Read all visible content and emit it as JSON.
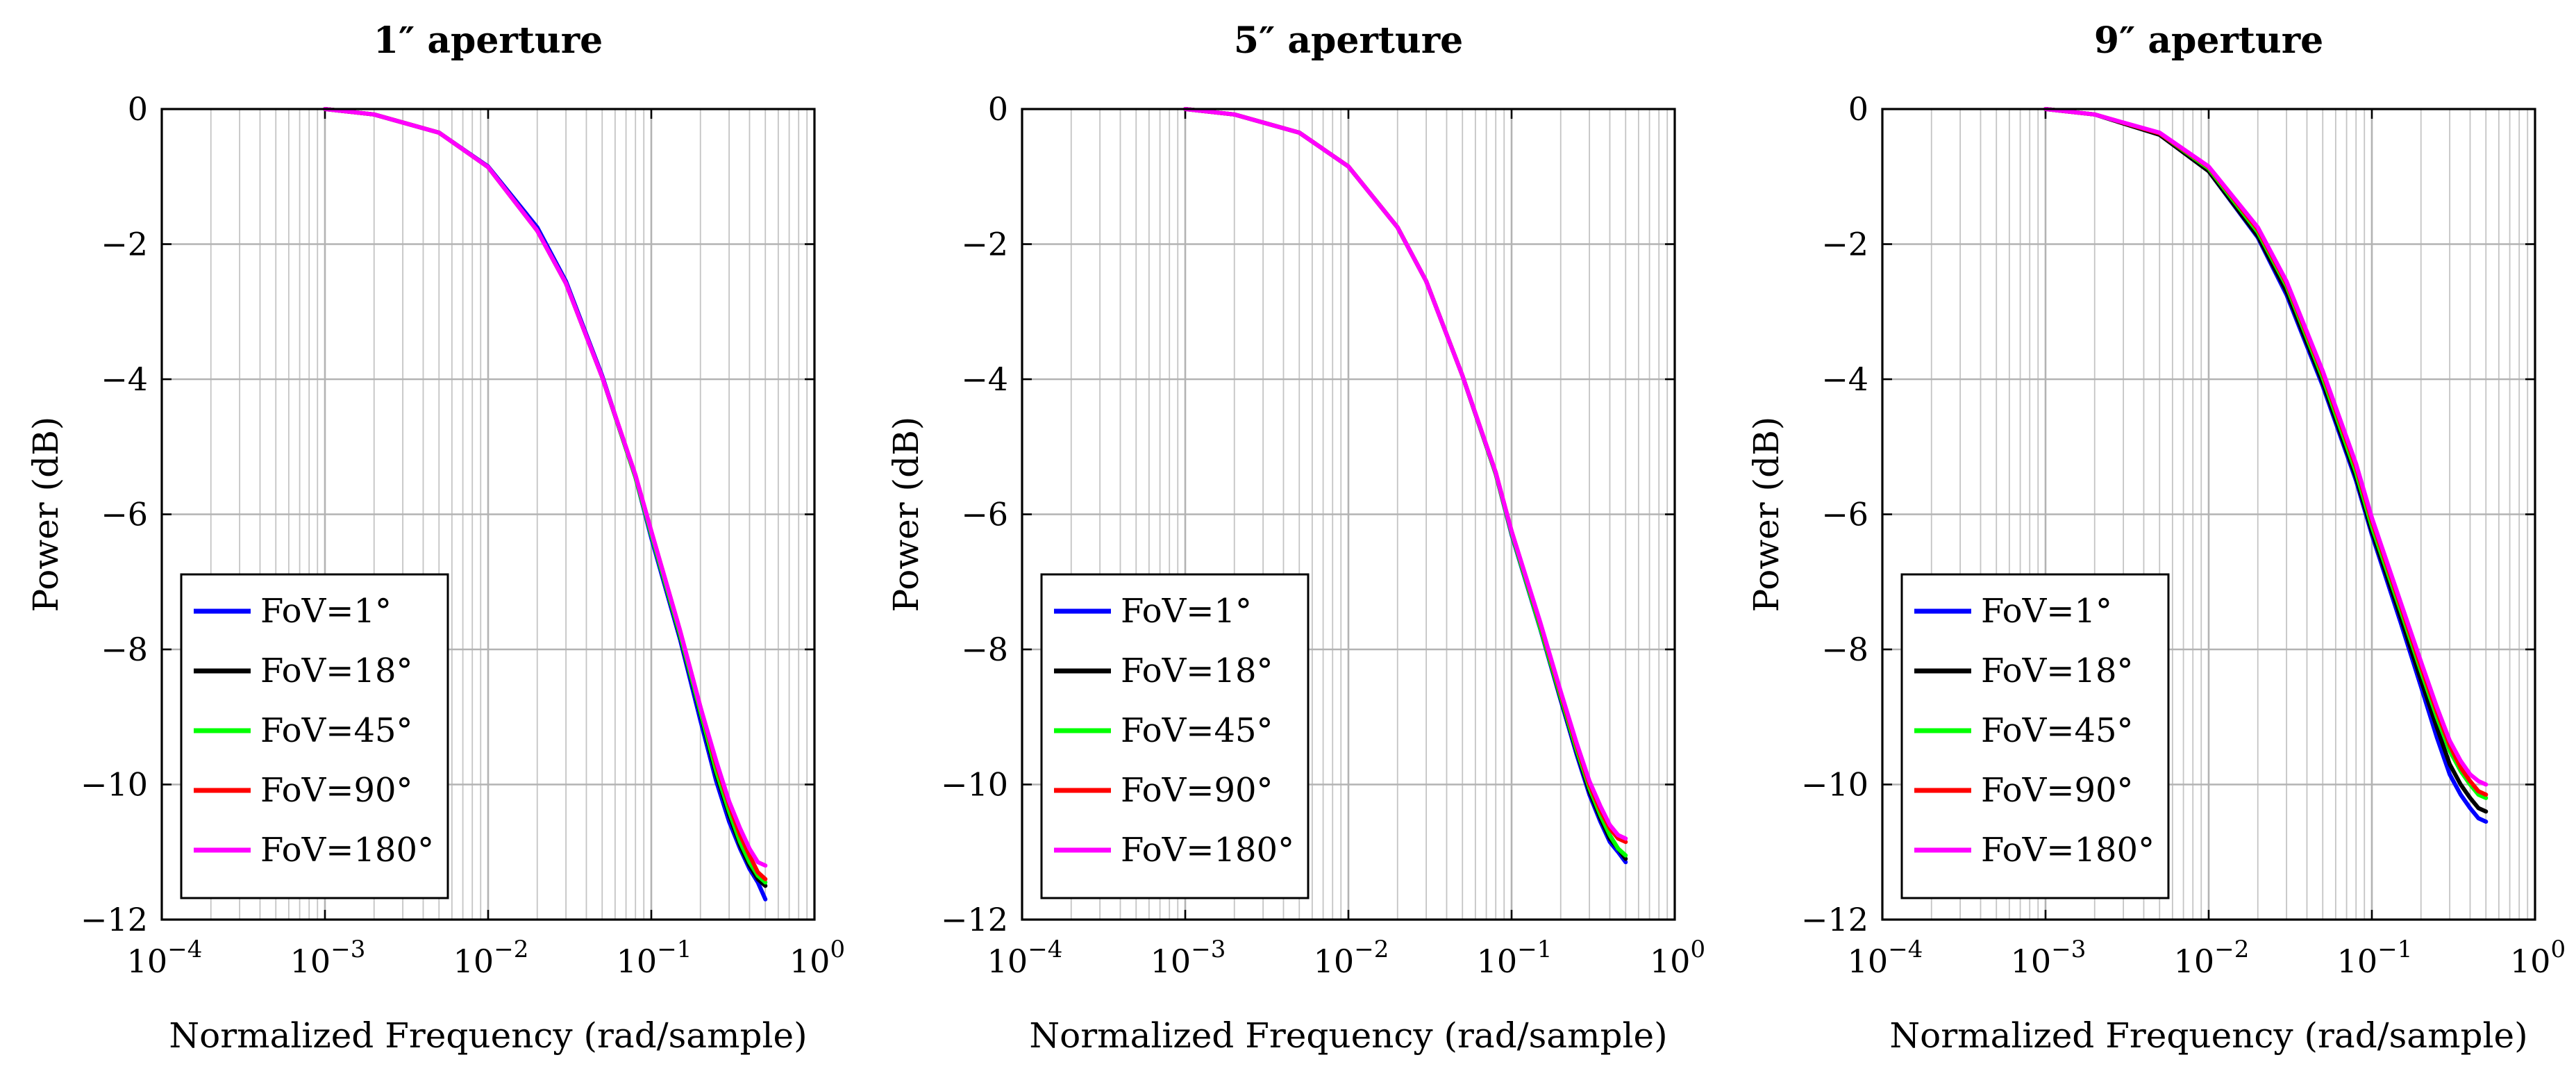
{
  "chart_data": [
    {
      "type": "line",
      "title": "1″ aperture",
      "xlabel": "Normalized Frequency (rad/sample)",
      "ylabel": "Power (dB)",
      "xscale": "log",
      "xlim": [
        0.0001,
        1
      ],
      "ylim": [
        -12,
        0
      ],
      "xticks": [
        {
          "base": "10",
          "exp": "−4"
        },
        {
          "base": "10",
          "exp": "−3"
        },
        {
          "base": "10",
          "exp": "−2"
        },
        {
          "base": "10",
          "exp": "−1"
        },
        {
          "base": "10",
          "exp": "0"
        }
      ],
      "yticks": [
        "0",
        "−2",
        "−4",
        "−6",
        "−8",
        "−10",
        "−12"
      ],
      "grid": true,
      "legend_position": "bottom-left",
      "series": [
        {
          "name": "FoV=1°",
          "color": "#0000ff",
          "x": [
            0.001,
            0.002,
            0.005,
            0.01,
            0.02,
            0.03,
            0.05,
            0.08,
            0.1,
            0.15,
            0.2,
            0.25,
            0.3,
            0.35,
            0.4,
            0.45,
            0.5
          ],
          "y": [
            0,
            -0.08,
            -0.35,
            -0.85,
            -1.75,
            -2.55,
            -3.95,
            -5.45,
            -6.35,
            -7.85,
            -9.05,
            -9.95,
            -10.55,
            -10.95,
            -11.25,
            -11.45,
            -11.7
          ]
        },
        {
          "name": "FoV=18°",
          "color": "#000000",
          "x": [
            0.001,
            0.002,
            0.005,
            0.01,
            0.02,
            0.03,
            0.05,
            0.08,
            0.1,
            0.15,
            0.2,
            0.25,
            0.3,
            0.35,
            0.4,
            0.45,
            0.5
          ],
          "y": [
            0,
            -0.08,
            -0.35,
            -0.86,
            -1.8,
            -2.58,
            -3.97,
            -5.45,
            -6.3,
            -7.8,
            -8.95,
            -9.85,
            -10.45,
            -10.9,
            -11.2,
            -11.4,
            -11.5
          ]
        },
        {
          "name": "FoV=45°",
          "color": "#00ff00",
          "x": [
            0.001,
            0.002,
            0.005,
            0.01,
            0.02,
            0.03,
            0.05,
            0.08,
            0.1,
            0.15,
            0.2,
            0.25,
            0.3,
            0.35,
            0.4,
            0.45,
            0.5
          ],
          "y": [
            0,
            -0.08,
            -0.35,
            -0.86,
            -1.8,
            -2.58,
            -3.97,
            -5.45,
            -6.3,
            -7.78,
            -8.92,
            -9.8,
            -10.4,
            -10.85,
            -11.15,
            -11.35,
            -11.45
          ]
        },
        {
          "name": "FoV=90°",
          "color": "#ff0000",
          "x": [
            0.001,
            0.002,
            0.005,
            0.01,
            0.02,
            0.03,
            0.05,
            0.08,
            0.1,
            0.15,
            0.2,
            0.25,
            0.3,
            0.35,
            0.4,
            0.45,
            0.5
          ],
          "y": [
            0,
            -0.08,
            -0.35,
            -0.86,
            -1.8,
            -2.58,
            -3.97,
            -5.42,
            -6.25,
            -7.72,
            -8.85,
            -9.7,
            -10.3,
            -10.75,
            -11.05,
            -11.3,
            -11.4
          ]
        },
        {
          "name": "FoV=180°",
          "color": "#ff00ff",
          "x": [
            0.001,
            0.002,
            0.005,
            0.01,
            0.02,
            0.03,
            0.05,
            0.08,
            0.1,
            0.15,
            0.2,
            0.25,
            0.3,
            0.35,
            0.4,
            0.45,
            0.5
          ],
          "y": [
            0,
            -0.08,
            -0.35,
            -0.86,
            -1.8,
            -2.58,
            -3.97,
            -5.42,
            -6.25,
            -7.72,
            -8.85,
            -9.65,
            -10.25,
            -10.65,
            -10.95,
            -11.15,
            -11.2
          ]
        }
      ]
    },
    {
      "type": "line",
      "title": "5″ aperture",
      "xlabel": "Normalized Frequency (rad/sample)",
      "ylabel": "Power (dB)",
      "xscale": "log",
      "xlim": [
        0.0001,
        1
      ],
      "ylim": [
        -12,
        0
      ],
      "xticks": [
        {
          "base": "10",
          "exp": "−4"
        },
        {
          "base": "10",
          "exp": "−3"
        },
        {
          "base": "10",
          "exp": "−2"
        },
        {
          "base": "10",
          "exp": "−1"
        },
        {
          "base": "10",
          "exp": "0"
        }
      ],
      "yticks": [
        "0",
        "−2",
        "−4",
        "−6",
        "−8",
        "−10",
        "−12"
      ],
      "grid": true,
      "legend_position": "bottom-left",
      "series": [
        {
          "name": "FoV=1°",
          "color": "#0000ff",
          "x": [
            0.001,
            0.002,
            0.005,
            0.01,
            0.02,
            0.03,
            0.05,
            0.08,
            0.1,
            0.15,
            0.2,
            0.25,
            0.3,
            0.35,
            0.4,
            0.45,
            0.5
          ],
          "y": [
            0,
            -0.08,
            -0.35,
            -0.85,
            -1.75,
            -2.55,
            -3.95,
            -5.4,
            -6.3,
            -7.7,
            -8.75,
            -9.55,
            -10.15,
            -10.55,
            -10.85,
            -11.0,
            -11.15
          ]
        },
        {
          "name": "FoV=18°",
          "color": "#000000",
          "x": [
            0.001,
            0.002,
            0.005,
            0.01,
            0.02,
            0.03,
            0.05,
            0.08,
            0.1,
            0.15,
            0.2,
            0.25,
            0.3,
            0.35,
            0.4,
            0.45,
            0.5
          ],
          "y": [
            0,
            -0.08,
            -0.35,
            -0.85,
            -1.75,
            -2.55,
            -3.95,
            -5.4,
            -6.28,
            -7.68,
            -8.72,
            -9.5,
            -10.1,
            -10.5,
            -10.8,
            -10.95,
            -11.1
          ]
        },
        {
          "name": "FoV=45°",
          "color": "#00ff00",
          "x": [
            0.001,
            0.002,
            0.005,
            0.01,
            0.02,
            0.03,
            0.05,
            0.08,
            0.1,
            0.15,
            0.2,
            0.25,
            0.3,
            0.35,
            0.4,
            0.45,
            0.5
          ],
          "y": [
            0,
            -0.08,
            -0.35,
            -0.85,
            -1.75,
            -2.55,
            -3.95,
            -5.4,
            -6.28,
            -7.68,
            -8.7,
            -9.48,
            -10.05,
            -10.45,
            -10.75,
            -10.95,
            -11.05
          ]
        },
        {
          "name": "FoV=90°",
          "color": "#ff0000",
          "x": [
            0.001,
            0.002,
            0.005,
            0.01,
            0.02,
            0.03,
            0.05,
            0.08,
            0.1,
            0.15,
            0.2,
            0.25,
            0.3,
            0.35,
            0.4,
            0.45,
            0.5
          ],
          "y": [
            0,
            -0.08,
            -0.35,
            -0.85,
            -1.75,
            -2.55,
            -3.95,
            -5.38,
            -6.25,
            -7.62,
            -8.65,
            -9.42,
            -10.0,
            -10.38,
            -10.65,
            -10.8,
            -10.85
          ]
        },
        {
          "name": "FoV=180°",
          "color": "#ff00ff",
          "x": [
            0.001,
            0.002,
            0.005,
            0.01,
            0.02,
            0.03,
            0.05,
            0.08,
            0.1,
            0.15,
            0.2,
            0.25,
            0.3,
            0.35,
            0.4,
            0.45,
            0.5
          ],
          "y": [
            0,
            -0.08,
            -0.35,
            -0.85,
            -1.75,
            -2.55,
            -3.95,
            -5.38,
            -6.25,
            -7.6,
            -8.62,
            -9.38,
            -9.95,
            -10.32,
            -10.6,
            -10.75,
            -10.8
          ]
        }
      ]
    },
    {
      "type": "line",
      "title": "9″ aperture",
      "xlabel": "Normalized Frequency (rad/sample)",
      "ylabel": "Power (dB)",
      "xscale": "log",
      "xlim": [
        0.0001,
        1
      ],
      "ylim": [
        -12,
        0
      ],
      "xticks": [
        {
          "base": "10",
          "exp": "−4"
        },
        {
          "base": "10",
          "exp": "−3"
        },
        {
          "base": "10",
          "exp": "−2"
        },
        {
          "base": "10",
          "exp": "−1"
        },
        {
          "base": "10",
          "exp": "0"
        }
      ],
      "yticks": [
        "0",
        "−2",
        "−4",
        "−6",
        "−8",
        "−10",
        "−12"
      ],
      "grid": true,
      "legend_position": "bottom-left",
      "series": [
        {
          "name": "FoV=1°",
          "color": "#0000ff",
          "x": [
            0.001,
            0.002,
            0.005,
            0.01,
            0.02,
            0.03,
            0.05,
            0.08,
            0.1,
            0.15,
            0.2,
            0.25,
            0.3,
            0.35,
            0.4,
            0.45,
            0.5
          ],
          "y": [
            0,
            -0.08,
            -0.38,
            -0.92,
            -1.9,
            -2.75,
            -4.1,
            -5.5,
            -6.3,
            -7.6,
            -8.55,
            -9.3,
            -9.85,
            -10.15,
            -10.35,
            -10.5,
            -10.55
          ]
        },
        {
          "name": "FoV=18°",
          "color": "#000000",
          "x": [
            0.001,
            0.002,
            0.005,
            0.01,
            0.02,
            0.03,
            0.05,
            0.08,
            0.1,
            0.15,
            0.2,
            0.25,
            0.3,
            0.35,
            0.4,
            0.45,
            0.5
          ],
          "y": [
            0,
            -0.08,
            -0.38,
            -0.92,
            -1.88,
            -2.7,
            -4.05,
            -5.45,
            -6.25,
            -7.52,
            -8.45,
            -9.15,
            -9.7,
            -10.0,
            -10.2,
            -10.35,
            -10.4
          ]
        },
        {
          "name": "FoV=45°",
          "color": "#00ff00",
          "x": [
            0.001,
            0.002,
            0.005,
            0.01,
            0.02,
            0.03,
            0.05,
            0.08,
            0.1,
            0.15,
            0.2,
            0.25,
            0.3,
            0.35,
            0.4,
            0.45,
            0.5
          ],
          "y": [
            0,
            -0.08,
            -0.36,
            -0.88,
            -1.82,
            -2.62,
            -3.98,
            -5.38,
            -6.18,
            -7.42,
            -8.32,
            -9.0,
            -9.5,
            -9.8,
            -10.0,
            -10.15,
            -10.2
          ]
        },
        {
          "name": "FoV=90°",
          "color": "#ff0000",
          "x": [
            0.001,
            0.002,
            0.005,
            0.01,
            0.02,
            0.03,
            0.05,
            0.08,
            0.1,
            0.15,
            0.2,
            0.25,
            0.3,
            0.35,
            0.4,
            0.45,
            0.5
          ],
          "y": [
            0,
            -0.08,
            -0.36,
            -0.86,
            -1.78,
            -2.58,
            -3.92,
            -5.3,
            -6.1,
            -7.35,
            -8.25,
            -8.92,
            -9.42,
            -9.75,
            -9.95,
            -10.1,
            -10.15
          ]
        },
        {
          "name": "FoV=180°",
          "color": "#ff00ff",
          "x": [
            0.001,
            0.002,
            0.005,
            0.01,
            0.02,
            0.03,
            0.05,
            0.08,
            0.1,
            0.15,
            0.2,
            0.25,
            0.3,
            0.35,
            0.4,
            0.45,
            0.5
          ],
          "y": [
            0,
            -0.08,
            -0.35,
            -0.85,
            -1.75,
            -2.55,
            -3.88,
            -5.25,
            -6.05,
            -7.3,
            -8.18,
            -8.85,
            -9.35,
            -9.65,
            -9.85,
            -9.95,
            -10.0
          ]
        }
      ]
    }
  ]
}
